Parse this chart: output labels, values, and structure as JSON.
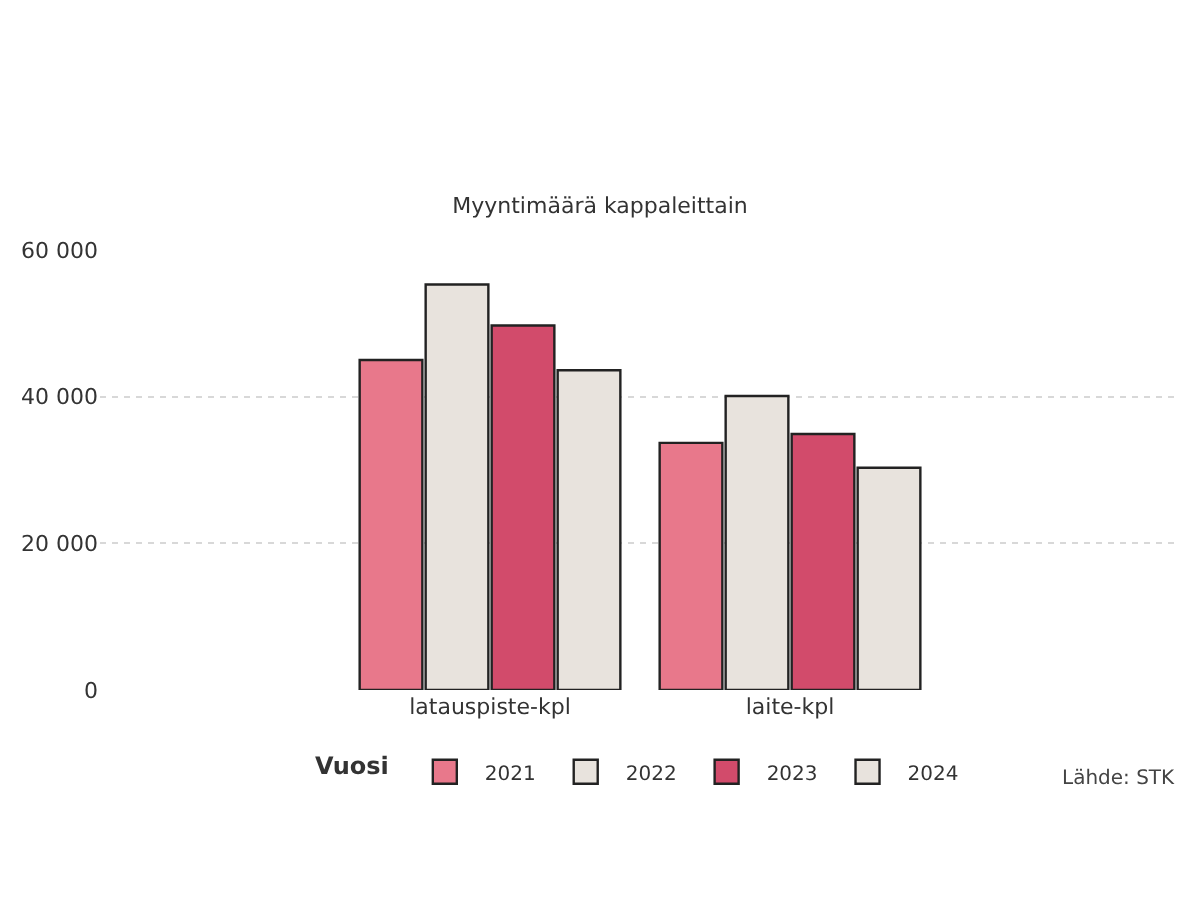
{
  "chart_data": {
    "type": "bar",
    "title": "Myyntimäärä kappaleittain",
    "categories": [
      "latauspiste-kpl",
      "laite-kpl"
    ],
    "series": [
      {
        "name": "2021",
        "color": "#e8788b",
        "values": [
          45000,
          33700
        ]
      },
      {
        "name": "2022",
        "color": "#e8e3dd",
        "values": [
          55300,
          40100
        ]
      },
      {
        "name": "2023",
        "color": "#d24b6b",
        "values": [
          49700,
          34900
        ]
      },
      {
        "name": "2024",
        "color": "#e8e3dd",
        "values": [
          43600,
          30300
        ]
      }
    ],
    "legend_title": "Vuosi",
    "legend": "bottom",
    "ylim": [
      0,
      60000
    ],
    "yticks": [
      {
        "value": 0,
        "label": "0"
      },
      {
        "value": 20000,
        "label": "20 000"
      },
      {
        "value": 40000,
        "label": "40 000"
      },
      {
        "value": 60000,
        "label": "60 000"
      }
    ],
    "grid": "y",
    "annotations": [
      "Lähde: STK"
    ]
  }
}
